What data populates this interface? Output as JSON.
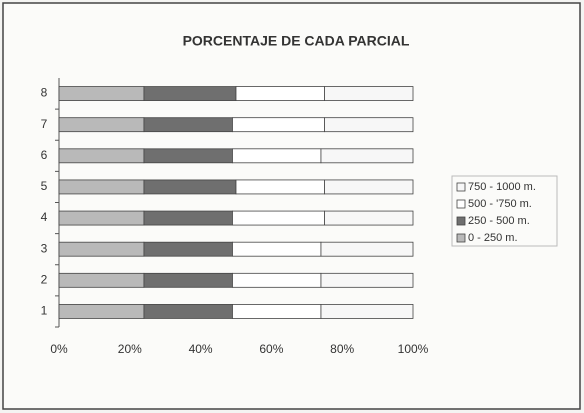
{
  "chart_data": {
    "type": "stacked_barh",
    "title": "PORCENTAJE DE CADA PARCIAL",
    "categories": [
      "1",
      "2",
      "3",
      "4",
      "5",
      "6",
      "7",
      "8"
    ],
    "series": [
      {
        "name": "0 - 250 m.",
        "color": "#b9b9b9",
        "values": [
          24,
          24,
          24,
          24,
          24,
          24,
          24,
          24
        ]
      },
      {
        "name": "250 - 500 m.",
        "color": "#6f6f6f",
        "values": [
          25,
          25,
          25,
          25,
          26,
          25,
          25,
          26
        ]
      },
      {
        "name": "500 - '750 m.",
        "color": "#ffffff",
        "values": [
          25,
          25,
          25,
          26,
          25,
          25,
          26,
          25
        ]
      },
      {
        "name": "750 - 1000 m.",
        "color": "#f7f7f7",
        "values": [
          26,
          26,
          26,
          25,
          25,
          26,
          25,
          25
        ]
      }
    ],
    "xlim": [
      0,
      100
    ],
    "xticks": [
      {
        "value": 0,
        "label": "0%"
      },
      {
        "value": 20,
        "label": "20%"
      },
      {
        "value": 40,
        "label": "40%"
      },
      {
        "value": 60,
        "label": "60%"
      },
      {
        "value": 80,
        "label": "80%"
      },
      {
        "value": 100,
        "label": "100%"
      }
    ],
    "legend": "right"
  }
}
